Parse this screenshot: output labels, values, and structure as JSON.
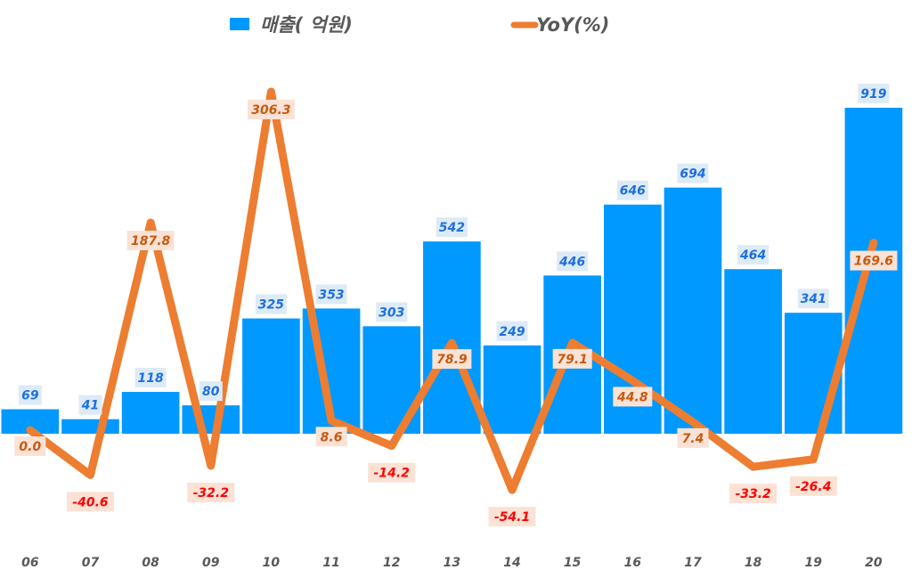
{
  "chart_data": {
    "type": "bar+line",
    "categories": [
      "06",
      "07",
      "08",
      "09",
      "10",
      "11",
      "12",
      "13",
      "14",
      "15",
      "16",
      "17",
      "18",
      "19",
      "20"
    ],
    "series": [
      {
        "name": "매출( 억원)",
        "type": "bar",
        "color": "#0099FF",
        "values": [
          69,
          41,
          118,
          80,
          325,
          353,
          303,
          542,
          249,
          446,
          646,
          694,
          464,
          341,
          919
        ]
      },
      {
        "name": "YoY(%)",
        "type": "line",
        "color": "#ED7D31",
        "values": [
          0.0,
          -40.6,
          187.8,
          -32.2,
          306.3,
          8.6,
          -14.2,
          78.9,
          -54.1,
          79.1,
          44.8,
          7.4,
          -33.2,
          -26.4,
          169.6
        ]
      }
    ],
    "title": "",
    "xlabel": "",
    "ylabel": "",
    "legend": "top",
    "grid": false,
    "colors": {
      "bar_label_bg": "#DDEBF7",
      "bar_label_text": "#1F6FE0",
      "line_label_bg": "#FBE2D5",
      "line_label_pos": "#C55A11",
      "line_label_neg": "#FF0000",
      "axis_text": "#595959"
    }
  }
}
